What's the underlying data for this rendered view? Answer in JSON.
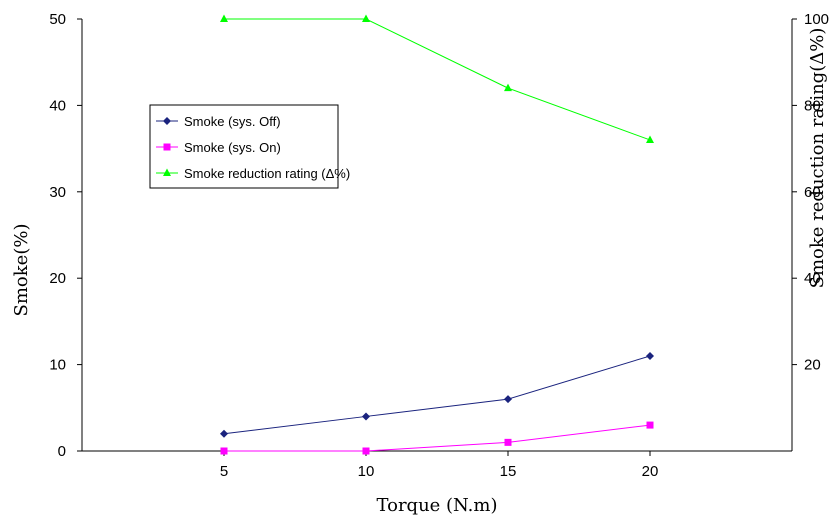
{
  "chart_data": {
    "type": "line",
    "title": "",
    "xlabel": "Torque (N.m)",
    "ylabel": "Smoke(%)",
    "y2label": "Smoke reduction rating(Δ%)",
    "x": [
      5,
      10,
      15,
      20
    ],
    "xticks": [
      "5",
      "10",
      "15",
      "20"
    ],
    "xlim": [
      0,
      25
    ],
    "ylim": [
      0,
      50
    ],
    "yticks": [
      "0",
      "10",
      "20",
      "30",
      "40",
      "50"
    ],
    "y2lim": [
      0,
      100
    ],
    "y2ticks": [
      "20",
      "40",
      "60",
      "80",
      "100"
    ],
    "grid": false,
    "legend_position": "upper-left",
    "series": [
      {
        "name": "Smoke (sys. Off)",
        "axis": "left",
        "marker": "diamond",
        "color": "#1a237e",
        "values": [
          2,
          4,
          6,
          11
        ]
      },
      {
        "name": "Smoke (sys. On)",
        "axis": "left",
        "marker": "square",
        "color": "#ff00ff",
        "values": [
          0,
          0,
          1,
          3
        ]
      },
      {
        "name": "Smoke reduction rating (Δ%)",
        "axis": "right",
        "marker": "triangle",
        "color": "#00ff00",
        "values": [
          100,
          100,
          84,
          72
        ]
      }
    ]
  }
}
